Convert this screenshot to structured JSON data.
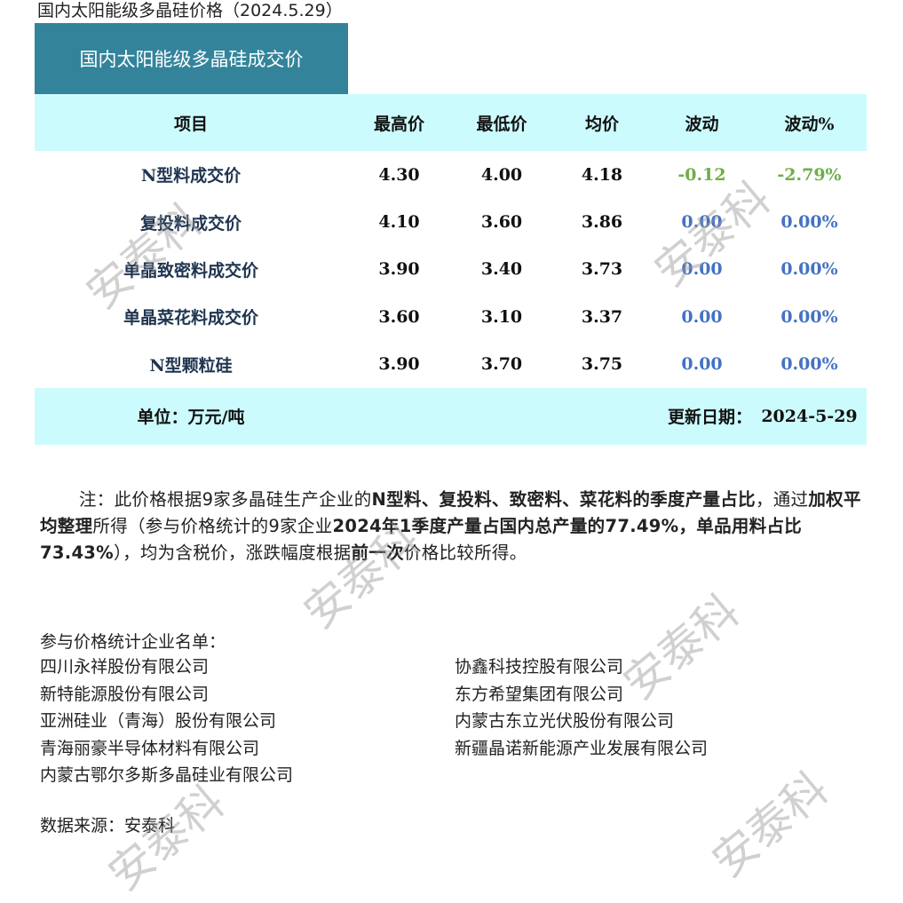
{
  "page_title": "国内太阳能级多晶硅价格（2024.5.29）",
  "banner_title": "国内太阳能级多晶硅成交价",
  "table": {
    "headers": [
      "项目",
      "最高价",
      "最低价",
      "均价",
      "波动",
      "波动%"
    ],
    "rows": [
      {
        "item": "N型料成交价",
        "high": "4.30",
        "low": "4.00",
        "avg": "4.18",
        "change": "-0.12",
        "change_pct": "-2.79%",
        "trend": "down"
      },
      {
        "item": "复投料成交价",
        "high": "4.10",
        "low": "3.60",
        "avg": "3.86",
        "change": "0.00",
        "change_pct": "0.00%",
        "trend": "flat"
      },
      {
        "item": "单晶致密料成交价",
        "high": "3.90",
        "low": "3.40",
        "avg": "3.73",
        "change": "0.00",
        "change_pct": "0.00%",
        "trend": "flat"
      },
      {
        "item": "单晶菜花料成交价",
        "high": "3.60",
        "low": "3.10",
        "avg": "3.37",
        "change": "0.00",
        "change_pct": "0.00%",
        "trend": "flat"
      },
      {
        "item": "N型颗粒硅",
        "high": "3.90",
        "low": "3.70",
        "avg": "3.75",
        "change": "0.00",
        "change_pct": "0.00%",
        "trend": "flat"
      }
    ],
    "unit_label": "单位：万元/吨",
    "update_label": "更新日期：",
    "update_date": "2024-5-29"
  },
  "colors": {
    "banner": "#33849b",
    "header_bg": "#ccfbfe",
    "down": "#70ad47",
    "flat": "#4472c4"
  },
  "note": [
    {
      "text": "注：此价格根据9家多晶硅生产企业的",
      "bold": false
    },
    {
      "text": "N型料、复投料、致密料、菜花料的季度产量占比",
      "bold": true
    },
    {
      "text": "，通过",
      "bold": false
    },
    {
      "text": "加权平均整理",
      "bold": true
    },
    {
      "text": "所得（参与价格统计的9家企业",
      "bold": false
    },
    {
      "text": "2024年1季度产量占国内总产量的77.49%，单品用料占比73.43%",
      "bold": true
    },
    {
      "text": "），均为含税价，涨跌幅度根据",
      "bold": false
    },
    {
      "text": "前一次",
      "bold": true
    },
    {
      "text": "价格比较所得。",
      "bold": false
    }
  ],
  "companies_title": "参与价格统计企业名单：",
  "companies_left": [
    "四川永祥股份有限公司",
    "新特能源股份有限公司",
    "亚洲硅业（青海）股份有限公司",
    "青海丽豪半导体材料有限公司",
    "内蒙古鄂尔多斯多晶硅业有限公司"
  ],
  "companies_right": [
    "协鑫科技控股有限公司",
    "东方希望集团有限公司",
    "内蒙古东立光伏股份有限公司",
    "新疆晶诺新能源产业发展有限公司"
  ],
  "source": "数据来源：安泰科",
  "watermark": "安泰科"
}
